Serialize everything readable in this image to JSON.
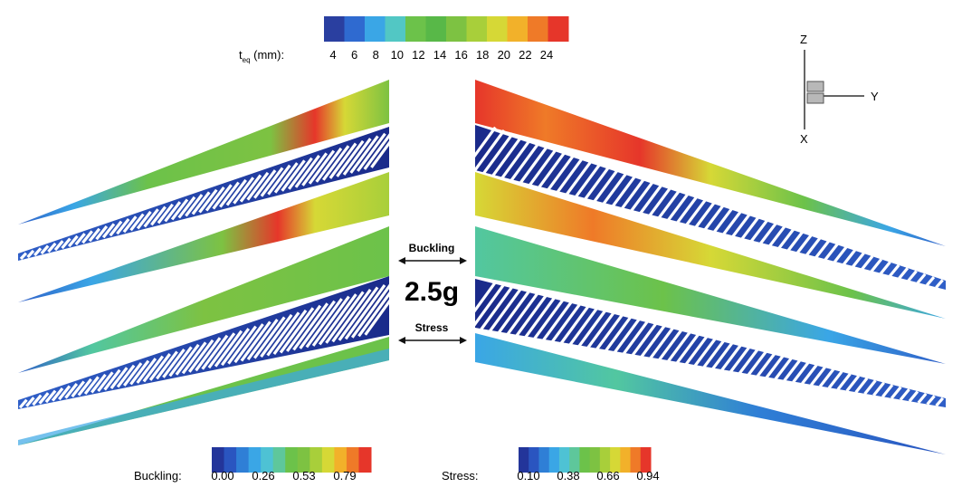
{
  "top_legend": {
    "label_main": "t",
    "label_sub": "eq",
    "label_unit": " (mm):",
    "ticks": [
      "4",
      "6",
      "8",
      "10",
      "12",
      "14",
      "16",
      "18",
      "20",
      "22",
      "24"
    ],
    "colors": [
      "#2a3fa0",
      "#2f6ad0",
      "#3aa6e6",
      "#52c7c4",
      "#6cc24a",
      "#58b848",
      "#7dc242",
      "#a8cf3a",
      "#d6d836",
      "#f2b12a",
      "#ef7a28",
      "#e6362a"
    ]
  },
  "buckling_legend": {
    "label": "Buckling:",
    "ticks": [
      "0.00",
      "0.26",
      "0.53",
      "0.79"
    ],
    "colors": [
      "#23359a",
      "#2a55c0",
      "#2f7fd6",
      "#3aa6e6",
      "#4ec2d4",
      "#5ec79b",
      "#6cc24a",
      "#7dc242",
      "#a8cf3a",
      "#d6d836",
      "#f2b12a",
      "#ef7a28",
      "#e6362a"
    ]
  },
  "stress_legend": {
    "label": "Stress:",
    "ticks": [
      "0.10",
      "0.38",
      "0.66",
      "0.94"
    ],
    "colors": [
      "#23359a",
      "#2a55c0",
      "#2f7fd6",
      "#3aa6e6",
      "#4ec2d4",
      "#5ec79b",
      "#6cc24a",
      "#7dc242",
      "#a8cf3a",
      "#d6d836",
      "#f2b12a",
      "#ef7a28",
      "#e6362a"
    ]
  },
  "center": {
    "buckling_label": "Buckling",
    "load_factor": "2.5g",
    "stress_label": "Stress"
  },
  "axes": {
    "z": "Z",
    "y": "Y",
    "x": "X"
  },
  "colors": {
    "dark_blue": "#1a2a8a",
    "blue": "#2f5fc8",
    "cyan": "#3aa6e6",
    "green": "#6cc24a",
    "yellow_green": "#a8cf3a",
    "orange": "#ef7a28",
    "red": "#e6362a"
  }
}
